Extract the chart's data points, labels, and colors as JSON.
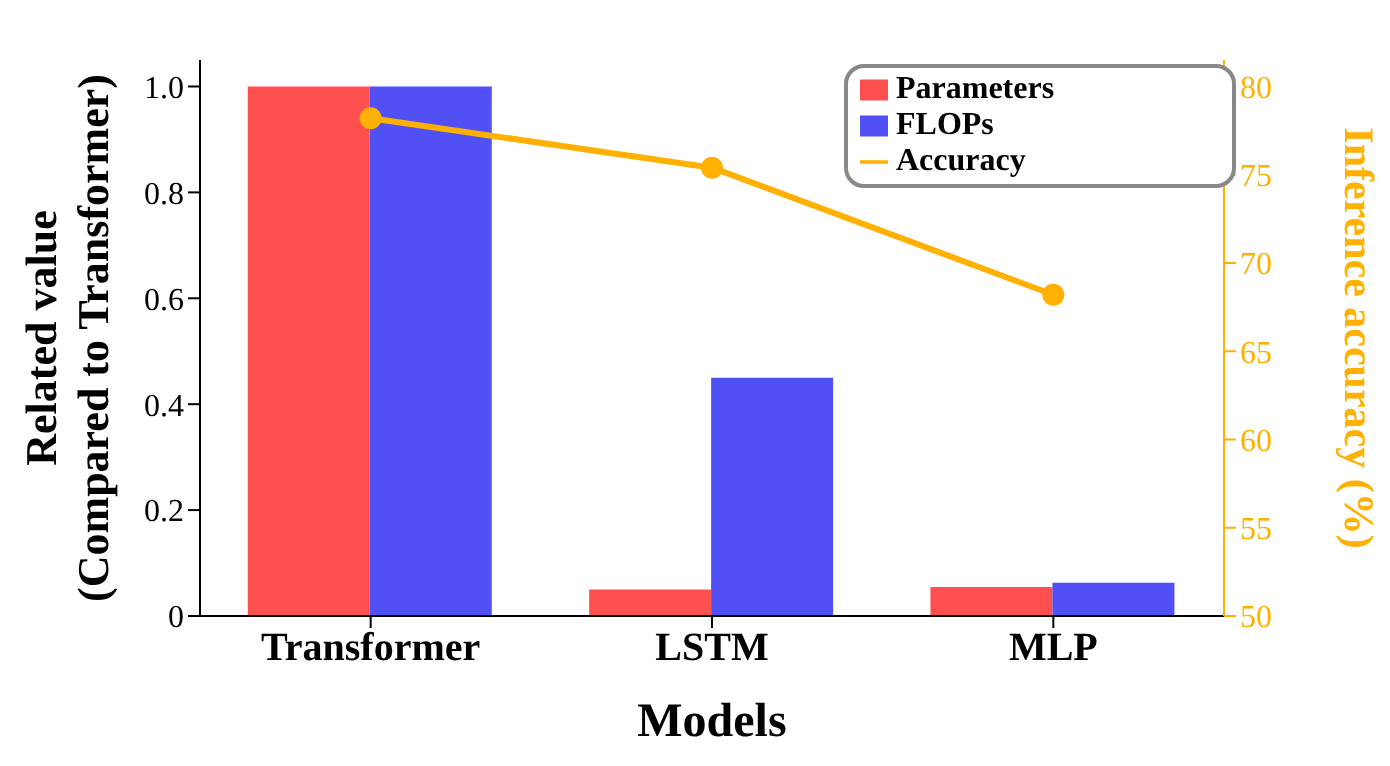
{
  "chart_data": {
    "type": "bar",
    "xlabel": "Models",
    "ylabel": "Related value\n(Compared to Transformer)",
    "y2label": "Inference accuracy (%)",
    "categories": [
      "Transformer",
      "LSTM",
      "MLP"
    ],
    "series": [
      {
        "name": "Accuracy",
        "type": "line",
        "axis": "y2",
        "color": "#ffb000",
        "values": [
          78.2,
          75.4,
          68.2
        ]
      },
      {
        "name": "Parameters",
        "color": "#ff5050",
        "values": [
          1.0,
          0.05,
          0.055
        ]
      },
      {
        "name": "FLOPs",
        "color": "#5050f5",
        "values": [
          1.0,
          0.45,
          0.063
        ]
      }
    ],
    "ylim": [
      0,
      1.05
    ],
    "yticks": [
      0,
      0.2,
      0.4,
      0.6,
      0.8,
      {
        "value": 1,
        "label": "1.0"
      }
    ],
    "y2lim": [
      50,
      81.5
    ],
    "y2ticks": [
      50,
      55,
      60,
      65,
      70,
      75,
      80
    ],
    "marker": "circle",
    "grid": false,
    "legend": "top right"
  }
}
